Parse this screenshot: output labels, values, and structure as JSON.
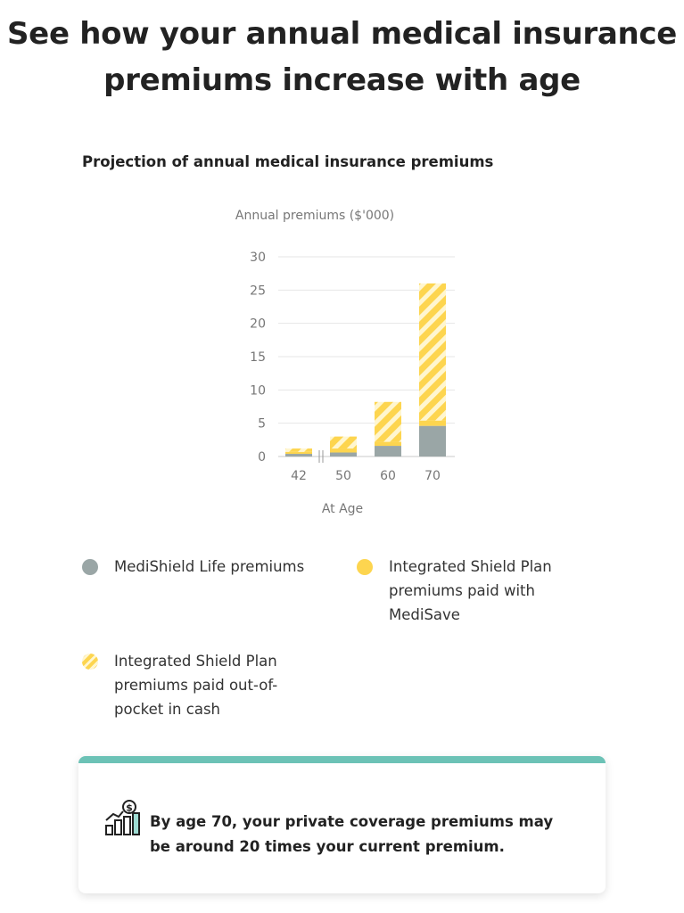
{
  "page": {
    "title_line1": "See how your annual medical insurance",
    "title_line2": "premiums increase with age"
  },
  "chart_heading": "Projection of annual medical insurance premiums",
  "chart_data": {
    "type": "bar",
    "stacked": true,
    "ylabel": "Annual premiums ($'000)",
    "xlabel": "At Age",
    "ylim": [
      0,
      30
    ],
    "yticks": [
      0,
      5,
      10,
      15,
      20,
      25,
      30
    ],
    "grid": true,
    "axis_break_after_category": "42",
    "categories": [
      "42",
      "50",
      "60",
      "70"
    ],
    "series": [
      {
        "name": "MediShield Life premiums",
        "values": [
          0.4,
          0.6,
          1.6,
          4.6
        ],
        "color": "#9aa6a6",
        "fill": "solid"
      },
      {
        "name": "Integrated Shield Plan premiums paid with MediSave",
        "values": [
          0.3,
          0.6,
          0.6,
          0.8
        ],
        "color": "#fdd54f",
        "fill": "solid"
      },
      {
        "name": "Integrated Shield Plan premiums paid out-of-pocket in cash",
        "values": [
          0.5,
          1.8,
          6.0,
          20.6
        ],
        "color": "#fdd54f",
        "fill": "hatched"
      }
    ]
  },
  "legend": {
    "item1": "MediShield Life premiums",
    "item2": "Integrated Shield Plan premiums paid with MediSave",
    "item3": "Integrated Shield Plan premiums paid out-of-pocket in cash"
  },
  "callout": {
    "text": "By age 70, your private coverage premiums may be around 20 times your current premium.",
    "icon": "growth-chart-dollar-icon",
    "accent_color": "#6cc2b6"
  }
}
